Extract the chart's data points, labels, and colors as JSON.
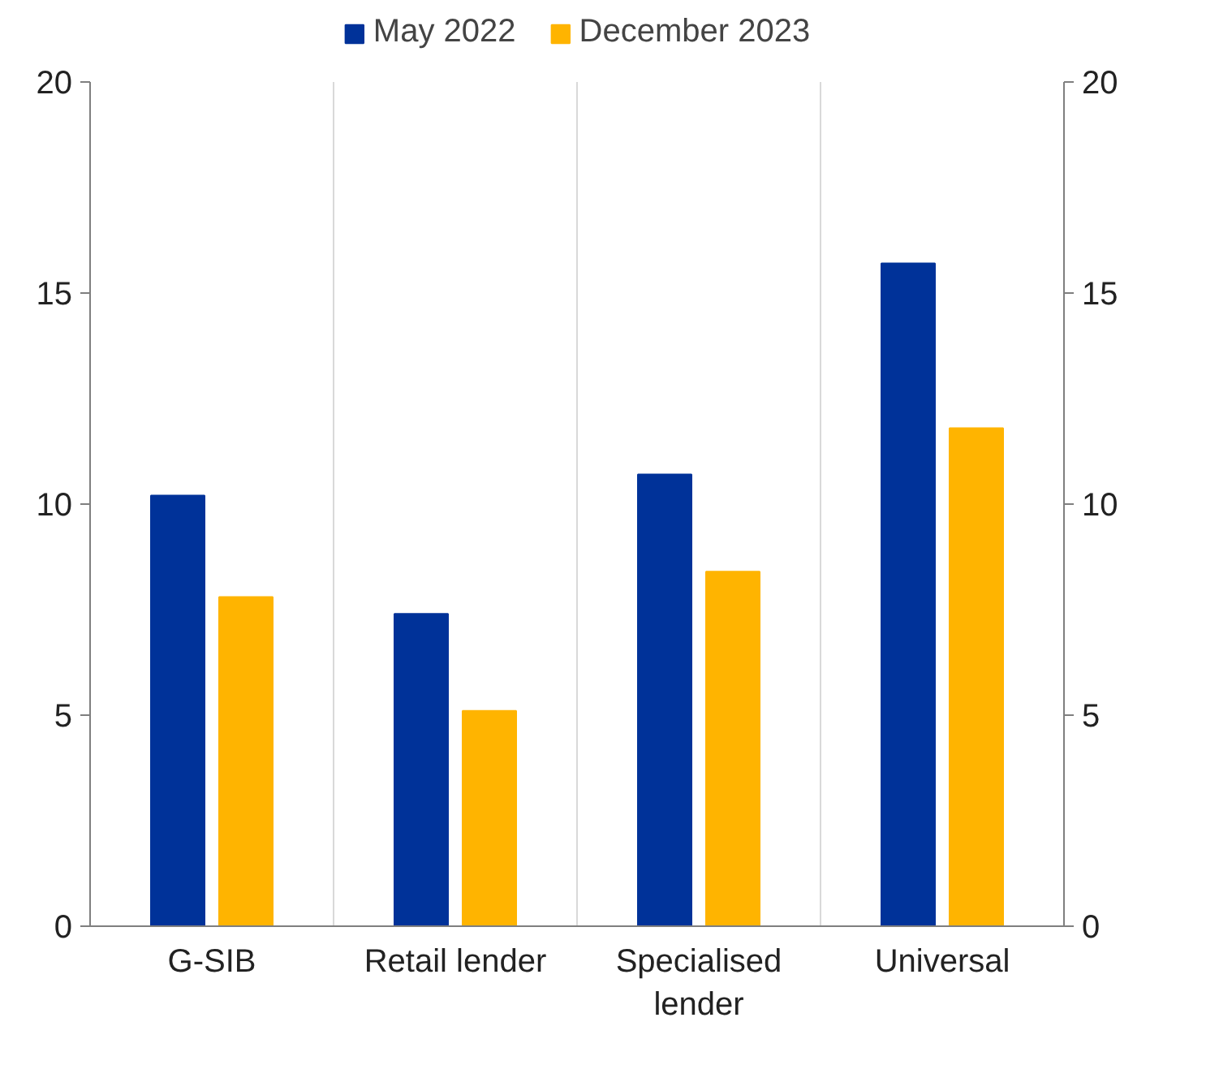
{
  "chart_data": {
    "type": "bar",
    "categories": [
      "G-SIB",
      "Retail lender",
      "Specialised lender",
      "Universal"
    ],
    "series": [
      {
        "name": "May 2022",
        "color": "#003299",
        "values": [
          10.2,
          7.4,
          10.7,
          15.7
        ]
      },
      {
        "name": "December 2023",
        "color": "#ffb400",
        "values": [
          7.8,
          5.1,
          8.4,
          11.8
        ]
      }
    ],
    "ylim": [
      0,
      20
    ],
    "yticks": [
      0,
      5,
      10,
      15,
      20
    ],
    "y2lim": [
      0,
      20
    ],
    "y2ticks": [
      0,
      5,
      10,
      15,
      20
    ],
    "grid": "x",
    "legend": "top"
  }
}
